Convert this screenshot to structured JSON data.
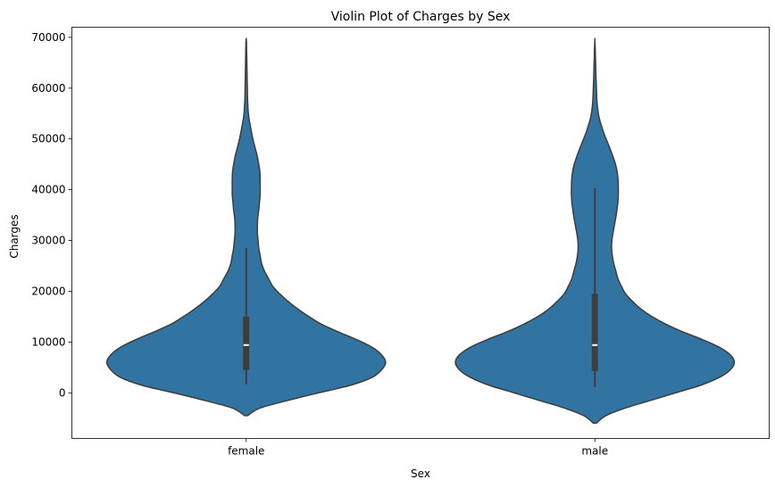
{
  "chart_data": {
    "type": "violin",
    "title": "Violin Plot of Charges by Sex",
    "xlabel": "Sex",
    "ylabel": "Charges",
    "ylim": [
      -9000,
      72000
    ],
    "yticks": [
      0,
      10000,
      20000,
      30000,
      40000,
      50000,
      60000,
      70000
    ],
    "ytick_labels": [
      "0",
      "10000",
      "20000",
      "30000",
      "40000",
      "50000",
      "60000",
      "70000"
    ],
    "grid": false,
    "color": "#3274a1",
    "edge_color": "#3d3d3d",
    "box_color": "#3d3d3d",
    "median_color": "#ffffff",
    "categories": [
      "female",
      "male"
    ],
    "violins": [
      {
        "category": "female",
        "kde_extent": [
          -4500,
          69700
        ],
        "q1": 4500,
        "median": 9400,
        "q3": 15000,
        "whisker_low": 1600,
        "whisker_high": 28500,
        "density": [
          [
            -4500,
            0.01
          ],
          [
            -3000,
            0.1
          ],
          [
            -1500,
            0.3
          ],
          [
            0,
            0.52
          ],
          [
            1500,
            0.75
          ],
          [
            3000,
            0.9
          ],
          [
            4500,
            0.97
          ],
          [
            6000,
            1.0
          ],
          [
            7500,
            0.97
          ],
          [
            9000,
            0.9
          ],
          [
            10500,
            0.79
          ],
          [
            12000,
            0.66
          ],
          [
            13500,
            0.54
          ],
          [
            15000,
            0.45
          ],
          [
            16500,
            0.37
          ],
          [
            18000,
            0.3
          ],
          [
            19500,
            0.24
          ],
          [
            21000,
            0.19
          ],
          [
            22500,
            0.16
          ],
          [
            24000,
            0.13
          ],
          [
            25500,
            0.11
          ],
          [
            27000,
            0.1
          ],
          [
            28500,
            0.09
          ],
          [
            30000,
            0.085
          ],
          [
            31500,
            0.08
          ],
          [
            33000,
            0.08
          ],
          [
            34500,
            0.083
          ],
          [
            36000,
            0.09
          ],
          [
            37500,
            0.095
          ],
          [
            39000,
            0.1
          ],
          [
            40500,
            0.1
          ],
          [
            42000,
            0.1
          ],
          [
            43500,
            0.098
          ],
          [
            45000,
            0.09
          ],
          [
            46500,
            0.08
          ],
          [
            48000,
            0.066
          ],
          [
            49500,
            0.052
          ],
          [
            51000,
            0.04
          ],
          [
            52500,
            0.03
          ],
          [
            54000,
            0.02
          ],
          [
            55500,
            0.014
          ],
          [
            57000,
            0.011
          ],
          [
            58500,
            0.009
          ],
          [
            60000,
            0.008
          ],
          [
            61500,
            0.007
          ],
          [
            63000,
            0.006
          ],
          [
            64500,
            0.005
          ],
          [
            66000,
            0.004
          ],
          [
            67500,
            0.003
          ],
          [
            69000,
            0.002
          ],
          [
            69700,
            0.0
          ]
        ]
      },
      {
        "category": "male",
        "kde_extent": [
          -6000,
          69500
        ],
        "q1": 4300,
        "median": 9400,
        "q3": 19500,
        "whisker_low": 1100,
        "whisker_high": 40300,
        "density": [
          [
            -6000,
            0.01
          ],
          [
            -4500,
            0.08
          ],
          [
            -3000,
            0.22
          ],
          [
            -1500,
            0.4
          ],
          [
            0,
            0.58
          ],
          [
            1500,
            0.76
          ],
          [
            3000,
            0.89
          ],
          [
            4500,
            0.97
          ],
          [
            6000,
            1.0
          ],
          [
            7500,
            0.97
          ],
          [
            9000,
            0.89
          ],
          [
            10500,
            0.77
          ],
          [
            12000,
            0.63
          ],
          [
            13500,
            0.51
          ],
          [
            15000,
            0.41
          ],
          [
            16500,
            0.33
          ],
          [
            18000,
            0.27
          ],
          [
            19500,
            0.22
          ],
          [
            21000,
            0.19
          ],
          [
            22500,
            0.165
          ],
          [
            24000,
            0.15
          ],
          [
            25500,
            0.135
          ],
          [
            27000,
            0.125
          ],
          [
            28500,
            0.12
          ],
          [
            30000,
            0.122
          ],
          [
            31500,
            0.13
          ],
          [
            33000,
            0.14
          ],
          [
            34500,
            0.15
          ],
          [
            36000,
            0.158
          ],
          [
            37500,
            0.165
          ],
          [
            39000,
            0.168
          ],
          [
            40500,
            0.168
          ],
          [
            42000,
            0.166
          ],
          [
            43500,
            0.16
          ],
          [
            45000,
            0.148
          ],
          [
            46500,
            0.13
          ],
          [
            48000,
            0.11
          ],
          [
            49500,
            0.088
          ],
          [
            51000,
            0.066
          ],
          [
            52500,
            0.048
          ],
          [
            54000,
            0.032
          ],
          [
            55500,
            0.022
          ],
          [
            57000,
            0.016
          ],
          [
            58500,
            0.013
          ],
          [
            60000,
            0.011
          ],
          [
            61500,
            0.009
          ],
          [
            63000,
            0.007
          ],
          [
            64500,
            0.006
          ],
          [
            66000,
            0.004
          ],
          [
            67500,
            0.003
          ],
          [
            69500,
            0.0
          ]
        ]
      }
    ]
  }
}
